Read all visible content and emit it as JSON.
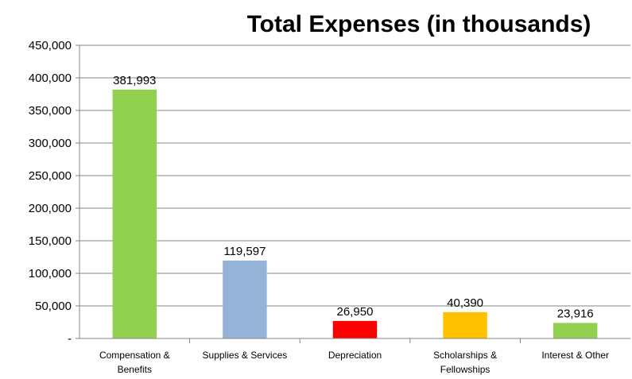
{
  "chart_data": {
    "type": "bar",
    "title": "Total Expenses (in thousands)",
    "categories": [
      [
        "Compensation &",
        "Benefits"
      ],
      [
        "Supplies & Services"
      ],
      [
        "Depreciation"
      ],
      [
        "Scholarships &",
        "Fellowships"
      ],
      [
        "Interest & Other"
      ]
    ],
    "values": [
      381993,
      119597,
      26950,
      40390,
      23916
    ],
    "data_labels": [
      "381,993",
      "119,597",
      "26,950",
      "40,390",
      "23,916"
    ],
    "bar_colors": [
      "#92d050",
      "#95b3d7",
      "#ff0000",
      "#ffc000",
      "#92d050"
    ],
    "yticks": [
      0,
      50000,
      100000,
      150000,
      200000,
      250000,
      300000,
      350000,
      400000,
      450000
    ],
    "ytick_labels": [
      "-",
      "50,000",
      "100,000",
      "150,000",
      "200,000",
      "250,000",
      "300,000",
      "350,000",
      "400,000",
      "450,000"
    ],
    "ylim": [
      0,
      450000
    ],
    "grid": true,
    "legend": false
  }
}
